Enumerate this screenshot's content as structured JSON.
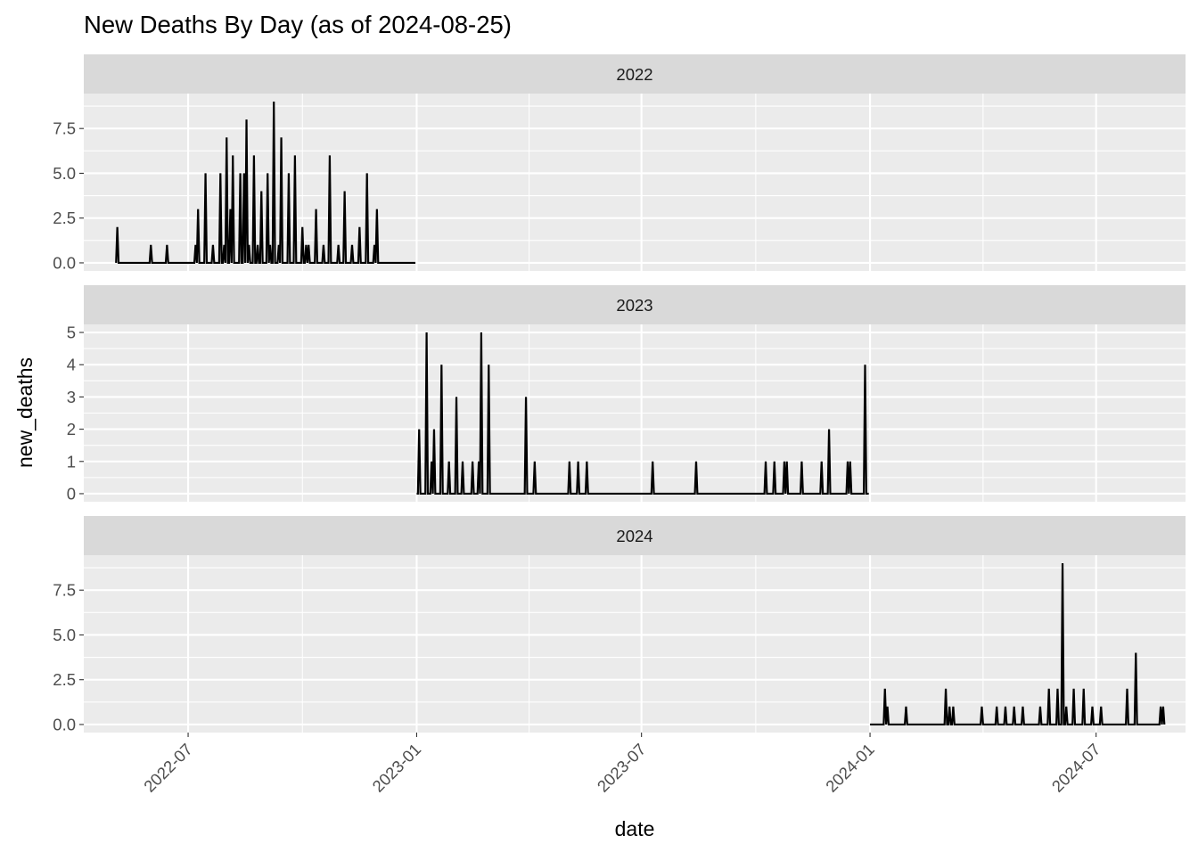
{
  "chart_data": {
    "type": "line",
    "title": "New Deaths By Day (as of 2024-08-25)",
    "xlabel": "date",
    "ylabel": "new_deaths",
    "x_type": "date",
    "xlim": [
      "2022-04-08",
      "2024-09-11"
    ],
    "x_ticks": [
      "2022-07-01",
      "2023-01-01",
      "2023-07-01",
      "2024-01-01",
      "2024-07-01"
    ],
    "x_tick_labels": [
      "2022-07",
      "2023-01",
      "2023-07",
      "2024-01",
      "2024-07"
    ],
    "facet_by": "year",
    "grid": true,
    "legend": "none",
    "line_color": "#000000",
    "panel_background": "#ebebeb",
    "strip_background": "#d9d9d9",
    "panels": [
      {
        "strip": "2022",
        "ylim": [
          -0.45,
          9.45
        ],
        "y_ticks": [
          0,
          2.5,
          5,
          7.5
        ],
        "y_tick_labels": [
          "0.0",
          "2.5",
          "5.0",
          "7.5"
        ],
        "start": "2022-05-04",
        "end": "2022-12-31",
        "points": [
          [
            "2022-05-05",
            2
          ],
          [
            "2022-06-01",
            1
          ],
          [
            "2022-06-14",
            1
          ],
          [
            "2022-07-07",
            1
          ],
          [
            "2022-07-09",
            3
          ],
          [
            "2022-07-15",
            5
          ],
          [
            "2022-07-21",
            1
          ],
          [
            "2022-07-27",
            5
          ],
          [
            "2022-07-30",
            1
          ],
          [
            "2022-08-01",
            7
          ],
          [
            "2022-08-04",
            3
          ],
          [
            "2022-08-06",
            6
          ],
          [
            "2022-08-12",
            5
          ],
          [
            "2022-08-15",
            5
          ],
          [
            "2022-08-17",
            8
          ],
          [
            "2022-08-19",
            1
          ],
          [
            "2022-08-23",
            6
          ],
          [
            "2022-08-26",
            1
          ],
          [
            "2022-08-29",
            4
          ],
          [
            "2022-09-03",
            5
          ],
          [
            "2022-09-05",
            1
          ],
          [
            "2022-09-08",
            9
          ],
          [
            "2022-09-12",
            1
          ],
          [
            "2022-09-14",
            7
          ],
          [
            "2022-09-20",
            5
          ],
          [
            "2022-09-25",
            6
          ],
          [
            "2022-10-01",
            2
          ],
          [
            "2022-10-04",
            1
          ],
          [
            "2022-10-06",
            1
          ],
          [
            "2022-10-12",
            3
          ],
          [
            "2022-10-18",
            1
          ],
          [
            "2022-10-23",
            6
          ],
          [
            "2022-10-30",
            1
          ],
          [
            "2022-11-04",
            4
          ],
          [
            "2022-11-10",
            1
          ],
          [
            "2022-11-16",
            2
          ],
          [
            "2022-11-22",
            5
          ],
          [
            "2022-11-28",
            1
          ],
          [
            "2022-11-30",
            3
          ]
        ]
      },
      {
        "strip": "2023",
        "ylim": [
          -0.25,
          5.25
        ],
        "y_ticks": [
          0,
          1,
          2,
          3,
          4,
          5
        ],
        "y_tick_labels": [
          "0",
          "1",
          "2",
          "3",
          "4",
          "5"
        ],
        "start": "2023-01-01",
        "end": "2023-12-31",
        "points": [
          [
            "2023-01-03",
            2
          ],
          [
            "2023-01-09",
            5
          ],
          [
            "2023-01-13",
            1
          ],
          [
            "2023-01-15",
            2
          ],
          [
            "2023-01-21",
            4
          ],
          [
            "2023-01-27",
            1
          ],
          [
            "2023-02-02",
            3
          ],
          [
            "2023-02-07",
            1
          ],
          [
            "2023-02-15",
            1
          ],
          [
            "2023-02-20",
            1
          ],
          [
            "2023-02-22",
            5
          ],
          [
            "2023-02-28",
            4
          ],
          [
            "2023-03-30",
            3
          ],
          [
            "2023-04-06",
            1
          ],
          [
            "2023-05-04",
            1
          ],
          [
            "2023-05-11",
            1
          ],
          [
            "2023-05-18",
            1
          ],
          [
            "2023-07-10",
            1
          ],
          [
            "2023-08-14",
            1
          ],
          [
            "2023-10-09",
            1
          ],
          [
            "2023-10-16",
            1
          ],
          [
            "2023-10-24",
            1
          ],
          [
            "2023-10-26",
            1
          ],
          [
            "2023-11-07",
            1
          ],
          [
            "2023-11-23",
            1
          ],
          [
            "2023-11-29",
            2
          ],
          [
            "2023-12-14",
            1
          ],
          [
            "2023-12-16",
            1
          ],
          [
            "2023-12-28",
            4
          ]
        ]
      },
      {
        "strip": "2024",
        "ylim": [
          -0.45,
          9.45
        ],
        "y_ticks": [
          0,
          2.5,
          5,
          7.5
        ],
        "y_tick_labels": [
          "0.0",
          "2.5",
          "5.0",
          "7.5"
        ],
        "start": "2024-01-01",
        "end": "2024-08-25",
        "points": [
          [
            "2024-01-13",
            2
          ],
          [
            "2024-01-15",
            1
          ],
          [
            "2024-01-30",
            1
          ],
          [
            "2024-03-02",
            2
          ],
          [
            "2024-03-05",
            1
          ],
          [
            "2024-03-08",
            1
          ],
          [
            "2024-03-31",
            1
          ],
          [
            "2024-04-12",
            1
          ],
          [
            "2024-04-19",
            1
          ],
          [
            "2024-04-26",
            1
          ],
          [
            "2024-05-03",
            1
          ],
          [
            "2024-05-17",
            1
          ],
          [
            "2024-05-24",
            2
          ],
          [
            "2024-05-31",
            2
          ],
          [
            "2024-06-04",
            9
          ],
          [
            "2024-06-07",
            1
          ],
          [
            "2024-06-13",
            2
          ],
          [
            "2024-06-21",
            2
          ],
          [
            "2024-06-28",
            1
          ],
          [
            "2024-07-05",
            1
          ],
          [
            "2024-07-26",
            2
          ],
          [
            "2024-08-02",
            4
          ],
          [
            "2024-08-22",
            1
          ],
          [
            "2024-08-24",
            1
          ]
        ]
      }
    ]
  }
}
